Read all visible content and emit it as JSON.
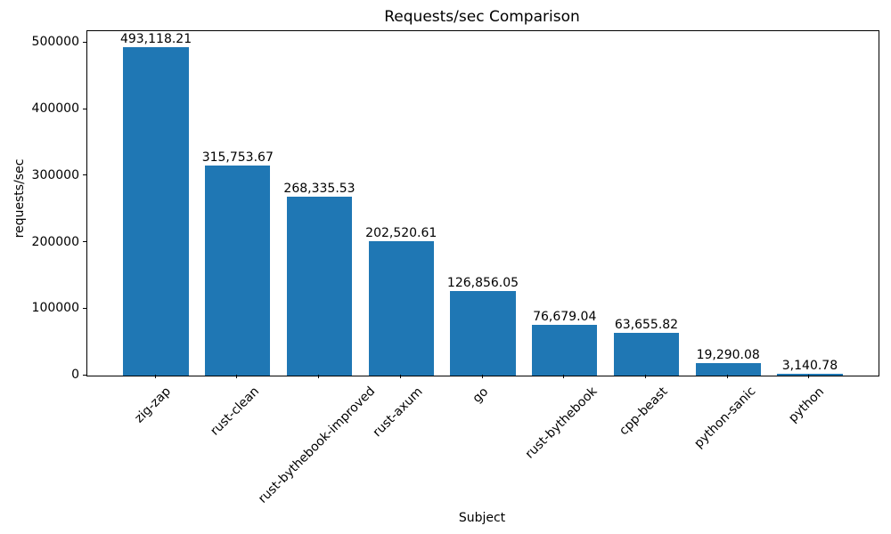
{
  "chart_data": {
    "type": "bar",
    "title": "Requests/sec Comparison",
    "xlabel": "Subject",
    "ylabel": "requests/sec",
    "categories": [
      "zig-zap",
      "rust-clean",
      "rust-bythebook-improved",
      "rust-axum",
      "go",
      "rust-bythebook",
      "cpp-beast",
      "python-sanic",
      "python"
    ],
    "values": [
      493118.21,
      315753.67,
      268335.53,
      202520.61,
      126856.05,
      76679.04,
      63655.82,
      19290.08,
      3140.78
    ],
    "bar_labels": [
      "493,118.21",
      "315,753.67",
      "268,335.53",
      "202,520.61",
      "126,856.05",
      "76,679.04",
      "63,655.82",
      "19,290.08",
      "3,140.78"
    ],
    "yticks": [
      0,
      100000,
      200000,
      300000,
      400000,
      500000
    ],
    "ytick_labels": [
      "0",
      "100000",
      "200000",
      "300000",
      "400000",
      "500000"
    ],
    "ylim": [
      0,
      517774
    ],
    "x_tick_rotation_deg": 45,
    "bar_color": "#1f77b4",
    "grid": false,
    "legend": "none"
  }
}
